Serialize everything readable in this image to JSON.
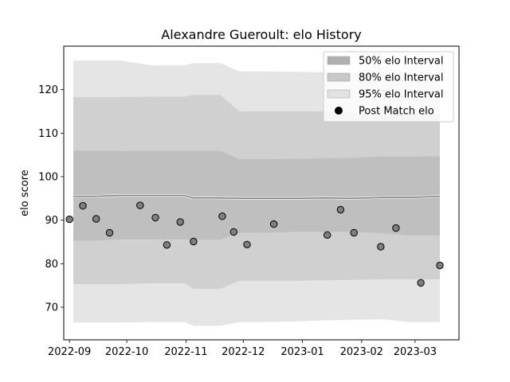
{
  "chart_data": {
    "type": "line",
    "title": "Alexandre Gueroult: elo History",
    "xlabel": "",
    "ylabel": "elo score",
    "xlim": [
      "2022-08-29",
      "2023-03-24"
    ],
    "ylim": [
      62.5,
      130
    ],
    "x_ticks": [
      "2022-09",
      "2022-10",
      "2022-11",
      "2022-12",
      "2023-01",
      "2023-02",
      "2023-03"
    ],
    "x_tick_dates": [
      "2022-09-01",
      "2022-10-01",
      "2022-11-01",
      "2022-12-01",
      "2023-01-01",
      "2023-02-01",
      "2023-03-01"
    ],
    "y_ticks": [
      70,
      80,
      90,
      100,
      110,
      120
    ],
    "grid": false,
    "legend_position": "top-right",
    "legend": [
      {
        "label": "50% elo Interval",
        "kind": "band",
        "color": "#b0b0b0"
      },
      {
        "label": "80% elo Interval",
        "kind": "band",
        "color": "#c8c8c8"
      },
      {
        "label": "95% elo Interval",
        "kind": "band",
        "color": "#e2e2e2"
      },
      {
        "label": "Post Match elo",
        "kind": "marker",
        "color": "#000000"
      }
    ],
    "dates": [
      "2022-09-03",
      "2022-09-14",
      "2022-09-28",
      "2022-10-14",
      "2022-10-31",
      "2022-11-05",
      "2022-11-19",
      "2022-11-29",
      "2022-12-14",
      "2022-12-28",
      "2023-01-14",
      "2023-01-26",
      "2023-02-12",
      "2023-02-26",
      "2023-03-14"
    ],
    "mean": [
      95.5,
      95.5,
      95.7,
      95.7,
      95.7,
      95.1,
      95.1,
      95.0,
      95.0,
      95.0,
      95.1,
      95.0,
      95.2,
      95.2,
      95.5
    ],
    "band50_lo": [
      85.3,
      85.3,
      85.6,
      85.6,
      85.6,
      85.5,
      85.5,
      87.1,
      87.1,
      87.3,
      87.3,
      87.3,
      87.0,
      86.5,
      86.5
    ],
    "band50_hi": [
      106.0,
      106.0,
      105.9,
      105.9,
      105.9,
      105.9,
      105.9,
      104.0,
      104.0,
      104.1,
      104.2,
      104.3,
      104.6,
      104.6,
      104.7
    ],
    "band80_lo": [
      75.3,
      75.3,
      75.3,
      75.5,
      75.5,
      74.2,
      74.2,
      76.1,
      76.1,
      76.1,
      76.2,
      76.3,
      76.4,
      76.4,
      76.4
    ],
    "band80_hi": [
      118.3,
      118.3,
      118.3,
      118.4,
      118.4,
      118.8,
      118.8,
      115.0,
      115.0,
      115.0,
      115.0,
      114.7,
      114.5,
      114.5,
      114.5
    ],
    "band95_lo": [
      66.5,
      66.5,
      66.5,
      66.6,
      66.6,
      65.7,
      65.7,
      66.6,
      66.6,
      66.7,
      67.0,
      67.1,
      67.2,
      66.6,
      66.6
    ],
    "band95_hi": [
      126.7,
      126.7,
      126.7,
      125.6,
      125.6,
      126.1,
      126.1,
      124.2,
      124.2,
      124.1,
      124.0,
      123.8,
      123.6,
      123.6,
      123.6
    ],
    "points": [
      {
        "date": "2022-09-01",
        "elo": 90.2
      },
      {
        "date": "2022-09-08",
        "elo": 93.3
      },
      {
        "date": "2022-09-15",
        "elo": 90.3
      },
      {
        "date": "2022-09-22",
        "elo": 87.1
      },
      {
        "date": "2022-10-08",
        "elo": 93.4
      },
      {
        "date": "2022-10-16",
        "elo": 90.6
      },
      {
        "date": "2022-10-22",
        "elo": 84.3
      },
      {
        "date": "2022-10-29",
        "elo": 89.6
      },
      {
        "date": "2022-11-05",
        "elo": 85.1
      },
      {
        "date": "2022-11-20",
        "elo": 90.9
      },
      {
        "date": "2022-11-26",
        "elo": 87.3
      },
      {
        "date": "2022-12-03",
        "elo": 84.4
      },
      {
        "date": "2022-12-17",
        "elo": 89.1
      },
      {
        "date": "2023-01-14",
        "elo": 86.6
      },
      {
        "date": "2023-01-21",
        "elo": 92.4
      },
      {
        "date": "2023-01-28",
        "elo": 87.1
      },
      {
        "date": "2023-02-11",
        "elo": 83.9
      },
      {
        "date": "2023-02-19",
        "elo": 88.2
      },
      {
        "date": "2023-03-04",
        "elo": 75.6
      },
      {
        "date": "2023-03-14",
        "elo": 79.6
      }
    ]
  }
}
